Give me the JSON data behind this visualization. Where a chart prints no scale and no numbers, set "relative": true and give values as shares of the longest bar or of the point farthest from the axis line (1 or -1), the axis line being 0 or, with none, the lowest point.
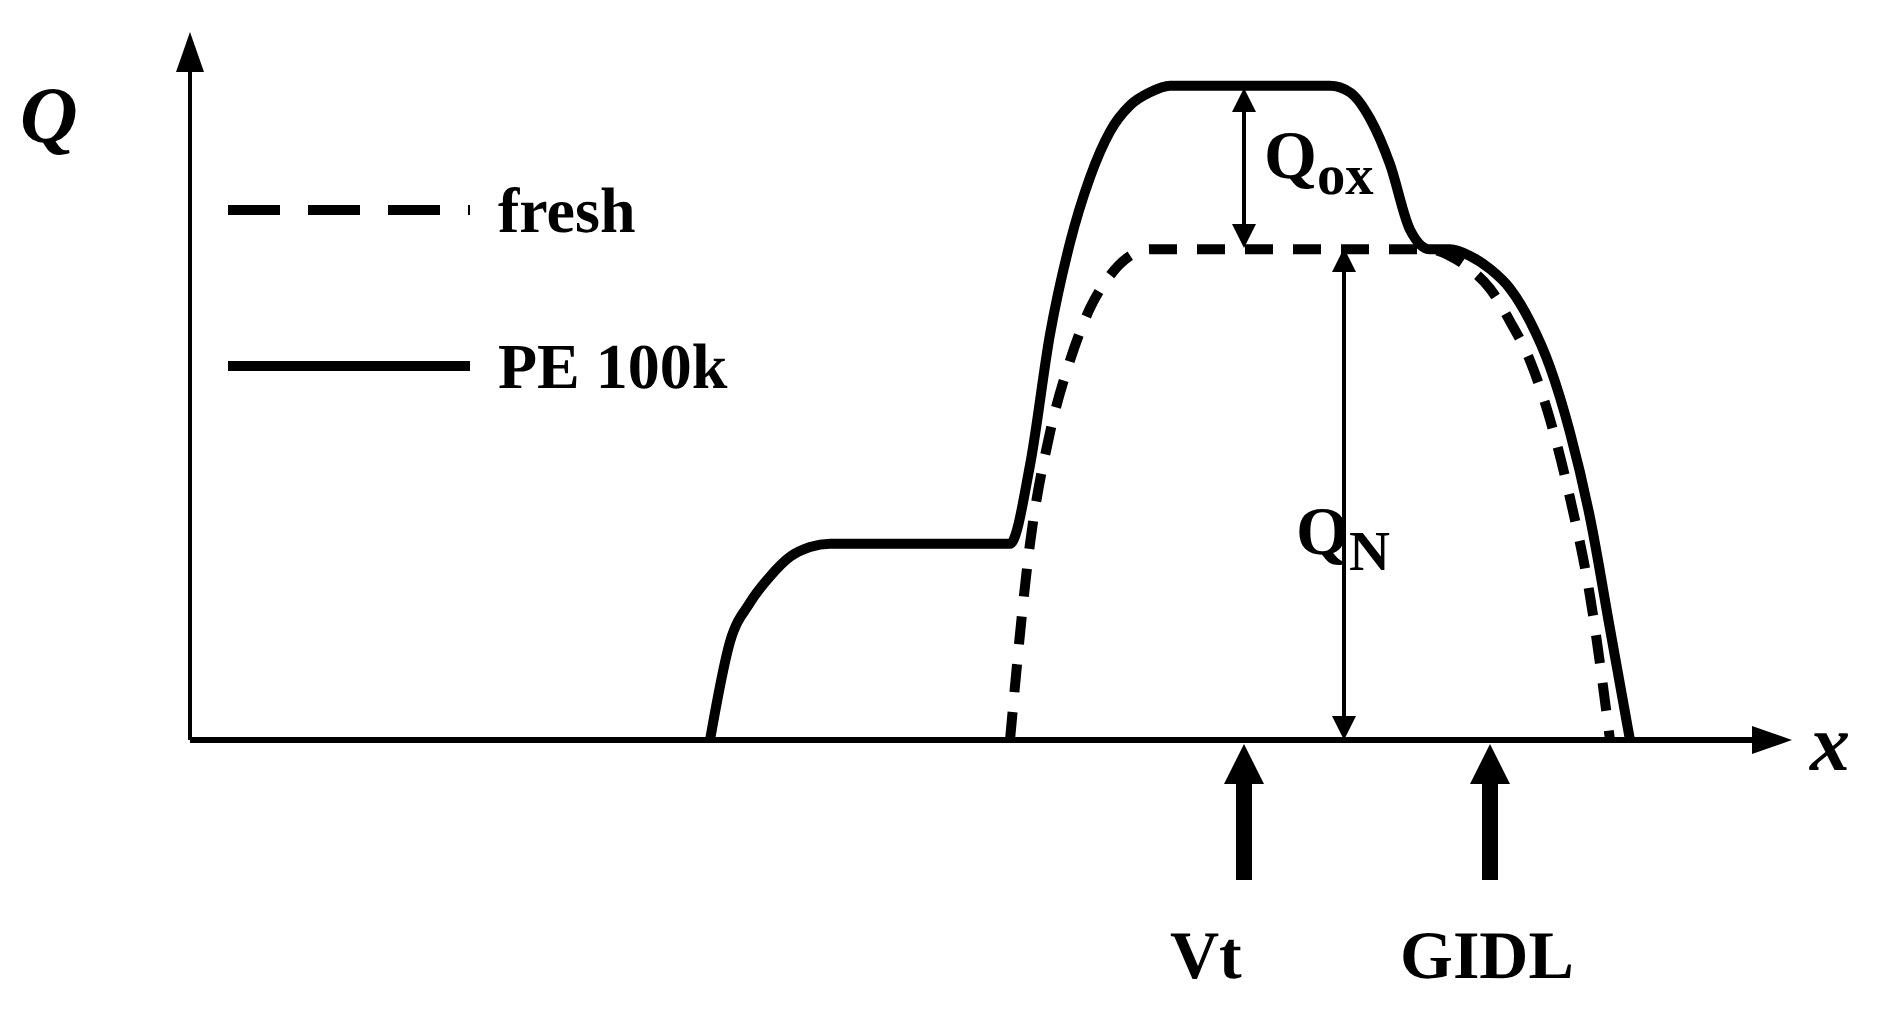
{
  "chart_data": {
    "type": "line",
    "relative": true,
    "xlabel": "x",
    "ylabel": "Q",
    "legend": "top left",
    "marker": "none",
    "categories": [
      null,
      null,
      null,
      null,
      null,
      null,
      null,
      null,
      null,
      null,
      null,
      null,
      null,
      null,
      null,
      null,
      null,
      null,
      null,
      null,
      null,
      null,
      null,
      null,
      null,
      null,
      null,
      null,
      null,
      null,
      null,
      null,
      null,
      null,
      null,
      null,
      null,
      null,
      null,
      null,
      null,
      null,
      null,
      null,
      null,
      null,
      null,
      null,
      null,
      null,
      null,
      null,
      null,
      null,
      null,
      null,
      null,
      null,
      null,
      null,
      null,
      null,
      null,
      null,
      null,
      null,
      null,
      null,
      null,
      null,
      null,
      null,
      null,
      null,
      null,
      null,
      null,
      null,
      null,
      null
    ],
    "series": [
      {
        "name": "fresh",
        "color": "#000000",
        "line_style": "dashed",
        "values": [
          null,
          null,
          null,
          null,
          null,
          null,
          null,
          null,
          null,
          null,
          null,
          null,
          null,
          null,
          null,
          null,
          null,
          null,
          null,
          null,
          null,
          null,
          null,
          null,
          null,
          null,
          null,
          null,
          null,
          null,
          null,
          null,
          null,
          null,
          null,
          null,
          null,
          null,
          null,
          null,
          null,
          0,
          0.3,
          0.47,
          0.58,
          0.66,
          0.71,
          0.74,
          0.75,
          0.75,
          0.75,
          0.75,
          0.75,
          0.75,
          0.75,
          0.75,
          0.75,
          0.75,
          0.75,
          0.75,
          0.75,
          0.75,
          0.75,
          0.74,
          0.72,
          0.69,
          0.64,
          0.58,
          0.49,
          0.37,
          0.22,
          0,
          null,
          null,
          null,
          null,
          null,
          null,
          null,
          null
        ]
      },
      {
        "name": "PE 100k",
        "color": "#000000",
        "line_style": "solid",
        "values": [
          null,
          null,
          null,
          null,
          null,
          null,
          null,
          null,
          null,
          null,
          null,
          null,
          null,
          null,
          null,
          null,
          null,
          null,
          null,
          null,
          null,
          null,
          null,
          null,
          null,
          null,
          0,
          0.15,
          0.21,
          0.25,
          0.28,
          0.295,
          0.3,
          0.3,
          0.3,
          0.3,
          0.3,
          0.3,
          0.3,
          0.3,
          0.3,
          0.3,
          0.42,
          0.62,
          0.76,
          0.86,
          0.93,
          0.97,
          0.99,
          1,
          1,
          1,
          1,
          1,
          1,
          1,
          1,
          1,
          0.99,
          0.95,
          0.88,
          0.78,
          0.75,
          0.75,
          0.74,
          0.72,
          0.69,
          0.64,
          0.57,
          0.47,
          0.34,
          0.17,
          0,
          null,
          null,
          null,
          null,
          null,
          null,
          null
        ]
      }
    ],
    "annotations": [
      "Q$_{ox}$",
      "Q$_{N}$",
      "Vt",
      "GIDL"
    ]
  }
}
